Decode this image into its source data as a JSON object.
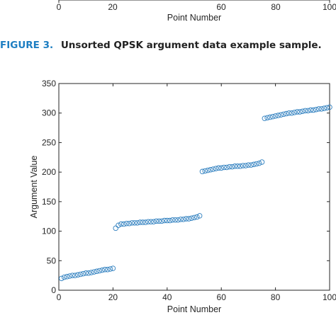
{
  "top_fragment": {
    "ticks": [
      "0",
      "20",
      "60",
      "80",
      "100"
    ],
    "xlabel": "Point Number"
  },
  "caption": {
    "label": "FIGURE 3.",
    "text": "Unsorted QPSK argument data example sample."
  },
  "colors": {
    "marker": "#2e7fbf",
    "caption_label": "#1d7ec2"
  },
  "chart_data": {
    "type": "scatter",
    "title": "",
    "xlabel": "Point Number",
    "ylabel": "Argument Value",
    "xlim": [
      0,
      100
    ],
    "ylim": [
      0,
      350
    ],
    "xticks": [
      0,
      20,
      40,
      60,
      80,
      100
    ],
    "yticks": [
      0,
      50,
      100,
      150,
      200,
      250,
      300,
      350
    ],
    "grid": false,
    "marker": "open-circle",
    "series": [
      {
        "x": [
          1,
          2,
          3,
          4,
          5,
          6,
          7,
          8,
          9,
          10,
          11,
          12,
          13,
          14,
          15,
          16,
          17,
          18,
          19,
          20,
          21,
          22,
          23,
          24,
          25,
          26,
          27,
          28,
          29,
          30,
          31,
          32,
          33,
          34,
          35,
          36,
          37,
          38,
          39,
          40,
          41,
          42,
          43,
          44,
          45,
          46,
          47,
          48,
          49,
          50,
          51,
          52,
          53,
          54,
          55,
          56,
          57,
          58,
          59,
          60,
          61,
          62,
          63,
          64,
          65,
          66,
          67,
          68,
          69,
          70,
          71,
          72,
          73,
          74,
          75,
          76,
          77,
          78,
          79,
          80,
          81,
          82,
          83,
          84,
          85,
          86,
          87,
          88,
          89,
          90,
          91,
          92,
          93,
          94,
          95,
          96,
          97,
          98,
          99,
          100
        ],
        "y": [
          20,
          22,
          23,
          24,
          25,
          25,
          26,
          27,
          28,
          29,
          29,
          30,
          31,
          32,
          33,
          34,
          35,
          35,
          36,
          37,
          105,
          110,
          112,
          112,
          113,
          113,
          114,
          114,
          114,
          115,
          115,
          115,
          116,
          116,
          116,
          117,
          117,
          117,
          118,
          118,
          118,
          119,
          119,
          119,
          120,
          120,
          121,
          121,
          122,
          123,
          124,
          126,
          201,
          202,
          203,
          204,
          205,
          206,
          207,
          207,
          208,
          208,
          209,
          209,
          210,
          210,
          210,
          211,
          211,
          212,
          212,
          213,
          214,
          215,
          217,
          291,
          292,
          293,
          294,
          295,
          296,
          297,
          298,
          299,
          300,
          300,
          301,
          302,
          302,
          303,
          304,
          304,
          305,
          305,
          306,
          307,
          307,
          308,
          309,
          310
        ]
      }
    ]
  }
}
